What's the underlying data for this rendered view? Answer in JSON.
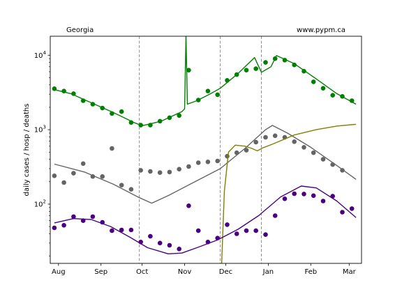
{
  "chart_data": {
    "type": "line",
    "y_scale": "log",
    "ylim": [
      16,
      18000
    ],
    "xlim": [
      "2020-07-26",
      "2021-03-10"
    ],
    "ylabel": "daily cases / hosp / deaths",
    "corner_left": "Georgia",
    "corner_right": "www.pypm.ca",
    "x_ticks": [
      {
        "date": "2020-08-01",
        "label": "Aug"
      },
      {
        "date": "2020-09-01",
        "label": "Sep"
      },
      {
        "date": "2020-10-01",
        "label": "Oct"
      },
      {
        "date": "2020-11-01",
        "label": "Nov"
      },
      {
        "date": "2020-12-01",
        "label": "Dec"
      },
      {
        "date": "2021-01-01",
        "label": "Jan"
      },
      {
        "date": "2021-02-01",
        "label": "Feb"
      },
      {
        "date": "2021-03-01",
        "label": "Mar"
      }
    ],
    "y_ticks": [
      {
        "value": 100,
        "base": "10",
        "exp": "2"
      },
      {
        "value": 1000,
        "base": "10",
        "exp": "3"
      },
      {
        "value": 10000,
        "base": "10",
        "exp": "4"
      }
    ],
    "grid": false,
    "vlines": [
      "2020-09-29",
      "2020-11-27",
      "2020-12-27"
    ],
    "series": [
      {
        "color": "#008000",
        "markers": [
          [
            "2020-07-29",
            3550
          ],
          [
            "2020-08-05",
            3300
          ],
          [
            "2020-08-12",
            3050
          ],
          [
            "2020-08-19",
            2450
          ],
          [
            "2020-08-26",
            2200
          ],
          [
            "2020-09-02",
            1950
          ],
          [
            "2020-09-09",
            1650
          ],
          [
            "2020-09-16",
            1750
          ],
          [
            "2020-09-23",
            1250
          ],
          [
            "2020-09-30",
            1150
          ],
          [
            "2020-10-07",
            1150
          ],
          [
            "2020-10-14",
            1300
          ],
          [
            "2020-10-21",
            1450
          ],
          [
            "2020-10-28",
            1550
          ],
          [
            "2020-11-04",
            6300
          ],
          [
            "2020-11-11",
            2500
          ],
          [
            "2020-11-18",
            3300
          ],
          [
            "2020-11-25",
            2950
          ],
          [
            "2020-12-02",
            4600
          ],
          [
            "2020-12-09",
            5500
          ],
          [
            "2020-12-16",
            6300
          ],
          [
            "2020-12-23",
            6600
          ],
          [
            "2020-12-30",
            8000
          ],
          [
            "2021-01-06",
            9000
          ],
          [
            "2021-01-13",
            8600
          ],
          [
            "2021-01-20",
            7400
          ],
          [
            "2021-01-27",
            6100
          ],
          [
            "2021-02-03",
            4400
          ],
          [
            "2021-02-10",
            3600
          ],
          [
            "2021-02-17",
            2900
          ],
          [
            "2021-02-24",
            2800
          ],
          [
            "2021-03-03",
            2450
          ]
        ],
        "curve": [
          [
            "2020-07-29",
            3450
          ],
          [
            "2020-08-10",
            3050
          ],
          [
            "2020-08-25",
            2300
          ],
          [
            "2020-09-10",
            1700
          ],
          [
            "2020-09-25",
            1250
          ],
          [
            "2020-10-01",
            1130
          ],
          [
            "2020-10-15",
            1300
          ],
          [
            "2020-10-30",
            1750
          ],
          [
            "2020-11-01",
            1900
          ],
          [
            "2020-11-02",
            18000
          ],
          [
            "2020-11-03",
            2200
          ],
          [
            "2020-11-10",
            2450
          ],
          [
            "2020-11-20",
            3050
          ],
          [
            "2020-11-27",
            3600
          ],
          [
            "2020-12-10",
            5700
          ],
          [
            "2020-12-22",
            9300
          ],
          [
            "2020-12-27",
            5900
          ],
          [
            "2021-01-03",
            7000
          ],
          [
            "2021-01-07",
            9900
          ],
          [
            "2021-01-20",
            7700
          ],
          [
            "2021-02-05",
            4800
          ],
          [
            "2021-02-20",
            3050
          ],
          [
            "2021-03-06",
            2200
          ]
        ]
      },
      {
        "color": "#646464",
        "markers": [
          [
            "2020-07-29",
            240
          ],
          [
            "2020-08-05",
            195
          ],
          [
            "2020-08-12",
            260
          ],
          [
            "2020-08-19",
            350
          ],
          [
            "2020-08-26",
            235
          ],
          [
            "2020-09-02",
            235
          ],
          [
            "2020-09-09",
            560
          ],
          [
            "2020-09-16",
            180
          ],
          [
            "2020-09-23",
            158
          ],
          [
            "2020-09-30",
            285
          ],
          [
            "2020-10-07",
            275
          ],
          [
            "2020-10-14",
            265
          ],
          [
            "2020-10-21",
            270
          ],
          [
            "2020-10-28",
            295
          ],
          [
            "2020-11-04",
            320
          ],
          [
            "2020-11-11",
            360
          ],
          [
            "2020-11-18",
            370
          ],
          [
            "2020-11-25",
            380
          ],
          [
            "2020-12-02",
            440
          ],
          [
            "2020-12-09",
            490
          ],
          [
            "2020-12-16",
            530
          ],
          [
            "2020-12-23",
            680
          ],
          [
            "2020-12-30",
            790
          ],
          [
            "2021-01-06",
            830
          ],
          [
            "2021-01-13",
            790
          ],
          [
            "2021-01-20",
            690
          ],
          [
            "2021-01-27",
            580
          ],
          [
            "2021-02-03",
            490
          ],
          [
            "2021-02-10",
            400
          ],
          [
            "2021-02-17",
            340
          ],
          [
            "2021-02-24",
            285
          ]
        ],
        "curve": [
          [
            "2020-07-29",
            345
          ],
          [
            "2020-08-20",
            270
          ],
          [
            "2020-09-10",
            185
          ],
          [
            "2020-09-29",
            122
          ],
          [
            "2020-10-08",
            103
          ],
          [
            "2020-10-20",
            130
          ],
          [
            "2020-11-05",
            185
          ],
          [
            "2020-11-27",
            300
          ],
          [
            "2020-12-15",
            560
          ],
          [
            "2020-12-30",
            1000
          ],
          [
            "2021-01-04",
            1140
          ],
          [
            "2021-01-15",
            900
          ],
          [
            "2021-02-01",
            580
          ],
          [
            "2021-02-20",
            330
          ],
          [
            "2021-03-06",
            215
          ]
        ]
      },
      {
        "color": "#808000",
        "markers": [],
        "curve": [
          [
            "2020-11-28",
            16
          ],
          [
            "2020-11-30",
            150
          ],
          [
            "2020-12-03",
            500
          ],
          [
            "2020-12-08",
            620
          ],
          [
            "2020-12-15",
            600
          ],
          [
            "2020-12-20",
            560
          ],
          [
            "2020-12-24",
            520
          ],
          [
            "2020-12-28",
            570
          ],
          [
            "2021-01-05",
            650
          ],
          [
            "2021-01-20",
            850
          ],
          [
            "2021-02-05",
            1000
          ],
          [
            "2021-02-20",
            1120
          ],
          [
            "2021-03-06",
            1180
          ]
        ]
      },
      {
        "color": "#4b0082",
        "markers": [
          [
            "2020-07-29",
            48
          ],
          [
            "2020-08-05",
            52
          ],
          [
            "2020-08-12",
            68
          ],
          [
            "2020-08-19",
            60
          ],
          [
            "2020-08-26",
            68
          ],
          [
            "2020-09-02",
            57
          ],
          [
            "2020-09-09",
            44
          ],
          [
            "2020-09-16",
            45
          ],
          [
            "2020-09-23",
            45
          ],
          [
            "2020-09-30",
            31
          ],
          [
            "2020-10-07",
            37
          ],
          [
            "2020-10-14",
            30
          ],
          [
            "2020-10-21",
            28
          ],
          [
            "2020-10-28",
            25
          ],
          [
            "2020-11-04",
            95
          ],
          [
            "2020-11-11",
            44
          ],
          [
            "2020-11-18",
            31
          ],
          [
            "2020-11-25",
            35
          ],
          [
            "2020-12-02",
            53
          ],
          [
            "2020-12-09",
            40
          ],
          [
            "2020-12-16",
            44
          ],
          [
            "2020-12-23",
            44
          ],
          [
            "2020-12-30",
            39
          ],
          [
            "2021-01-06",
            70
          ],
          [
            "2021-01-13",
            118
          ],
          [
            "2021-01-20",
            138
          ],
          [
            "2021-01-27",
            137
          ],
          [
            "2021-02-03",
            130
          ],
          [
            "2021-02-10",
            110
          ],
          [
            "2021-02-17",
            128
          ],
          [
            "2021-02-24",
            78
          ],
          [
            "2021-03-03",
            87
          ]
        ],
        "curve": [
          [
            "2020-07-29",
            56
          ],
          [
            "2020-08-12",
            64
          ],
          [
            "2020-08-25",
            62
          ],
          [
            "2020-09-08",
            50
          ],
          [
            "2020-09-22",
            36
          ],
          [
            "2020-10-05",
            26
          ],
          [
            "2020-10-20",
            21.5
          ],
          [
            "2020-10-30",
            22
          ],
          [
            "2020-11-10",
            26
          ],
          [
            "2020-11-25",
            33
          ],
          [
            "2020-12-10",
            46
          ],
          [
            "2020-12-25",
            70
          ],
          [
            "2021-01-10",
            125
          ],
          [
            "2021-01-25",
            175
          ],
          [
            "2021-02-05",
            165
          ],
          [
            "2021-02-20",
            110
          ],
          [
            "2021-03-06",
            66
          ]
        ]
      }
    ]
  }
}
